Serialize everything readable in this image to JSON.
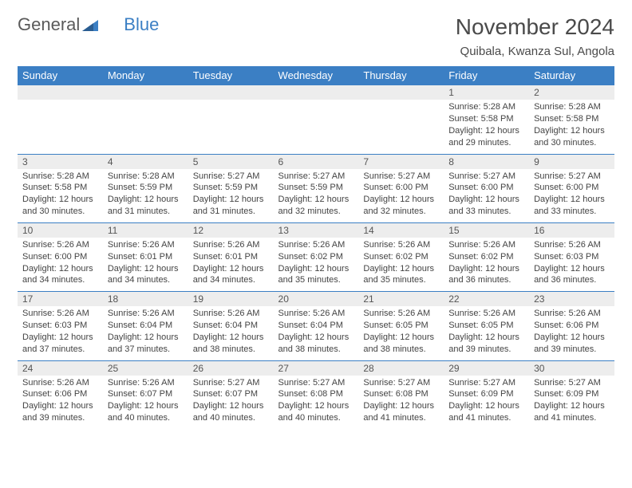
{
  "brand": {
    "part1": "General",
    "part2": "Blue"
  },
  "title": "November 2024",
  "location": "Quibala, Kwanza Sul, Angola",
  "colors": {
    "header_bg": "#3b7fc4",
    "header_text": "#ffffff",
    "daynum_bg": "#ededed",
    "rule": "#3b7fc4",
    "body_text": "#444444",
    "page_bg": "#ffffff"
  },
  "weekdays": [
    "Sunday",
    "Monday",
    "Tuesday",
    "Wednesday",
    "Thursday",
    "Friday",
    "Saturday"
  ],
  "weeks": [
    {
      "nums": [
        "",
        "",
        "",
        "",
        "",
        "1",
        "2"
      ],
      "cells": [
        {},
        {},
        {},
        {},
        {},
        {
          "sunrise": "Sunrise: 5:28 AM",
          "sunset": "Sunset: 5:58 PM",
          "day1": "Daylight: 12 hours",
          "day2": "and 29 minutes."
        },
        {
          "sunrise": "Sunrise: 5:28 AM",
          "sunset": "Sunset: 5:58 PM",
          "day1": "Daylight: 12 hours",
          "day2": "and 30 minutes."
        }
      ]
    },
    {
      "nums": [
        "3",
        "4",
        "5",
        "6",
        "7",
        "8",
        "9"
      ],
      "cells": [
        {
          "sunrise": "Sunrise: 5:28 AM",
          "sunset": "Sunset: 5:58 PM",
          "day1": "Daylight: 12 hours",
          "day2": "and 30 minutes."
        },
        {
          "sunrise": "Sunrise: 5:28 AM",
          "sunset": "Sunset: 5:59 PM",
          "day1": "Daylight: 12 hours",
          "day2": "and 31 minutes."
        },
        {
          "sunrise": "Sunrise: 5:27 AM",
          "sunset": "Sunset: 5:59 PM",
          "day1": "Daylight: 12 hours",
          "day2": "and 31 minutes."
        },
        {
          "sunrise": "Sunrise: 5:27 AM",
          "sunset": "Sunset: 5:59 PM",
          "day1": "Daylight: 12 hours",
          "day2": "and 32 minutes."
        },
        {
          "sunrise": "Sunrise: 5:27 AM",
          "sunset": "Sunset: 6:00 PM",
          "day1": "Daylight: 12 hours",
          "day2": "and 32 minutes."
        },
        {
          "sunrise": "Sunrise: 5:27 AM",
          "sunset": "Sunset: 6:00 PM",
          "day1": "Daylight: 12 hours",
          "day2": "and 33 minutes."
        },
        {
          "sunrise": "Sunrise: 5:27 AM",
          "sunset": "Sunset: 6:00 PM",
          "day1": "Daylight: 12 hours",
          "day2": "and 33 minutes."
        }
      ]
    },
    {
      "nums": [
        "10",
        "11",
        "12",
        "13",
        "14",
        "15",
        "16"
      ],
      "cells": [
        {
          "sunrise": "Sunrise: 5:26 AM",
          "sunset": "Sunset: 6:00 PM",
          "day1": "Daylight: 12 hours",
          "day2": "and 34 minutes."
        },
        {
          "sunrise": "Sunrise: 5:26 AM",
          "sunset": "Sunset: 6:01 PM",
          "day1": "Daylight: 12 hours",
          "day2": "and 34 minutes."
        },
        {
          "sunrise": "Sunrise: 5:26 AM",
          "sunset": "Sunset: 6:01 PM",
          "day1": "Daylight: 12 hours",
          "day2": "and 34 minutes."
        },
        {
          "sunrise": "Sunrise: 5:26 AM",
          "sunset": "Sunset: 6:02 PM",
          "day1": "Daylight: 12 hours",
          "day2": "and 35 minutes."
        },
        {
          "sunrise": "Sunrise: 5:26 AM",
          "sunset": "Sunset: 6:02 PM",
          "day1": "Daylight: 12 hours",
          "day2": "and 35 minutes."
        },
        {
          "sunrise": "Sunrise: 5:26 AM",
          "sunset": "Sunset: 6:02 PM",
          "day1": "Daylight: 12 hours",
          "day2": "and 36 minutes."
        },
        {
          "sunrise": "Sunrise: 5:26 AM",
          "sunset": "Sunset: 6:03 PM",
          "day1": "Daylight: 12 hours",
          "day2": "and 36 minutes."
        }
      ]
    },
    {
      "nums": [
        "17",
        "18",
        "19",
        "20",
        "21",
        "22",
        "23"
      ],
      "cells": [
        {
          "sunrise": "Sunrise: 5:26 AM",
          "sunset": "Sunset: 6:03 PM",
          "day1": "Daylight: 12 hours",
          "day2": "and 37 minutes."
        },
        {
          "sunrise": "Sunrise: 5:26 AM",
          "sunset": "Sunset: 6:04 PM",
          "day1": "Daylight: 12 hours",
          "day2": "and 37 minutes."
        },
        {
          "sunrise": "Sunrise: 5:26 AM",
          "sunset": "Sunset: 6:04 PM",
          "day1": "Daylight: 12 hours",
          "day2": "and 38 minutes."
        },
        {
          "sunrise": "Sunrise: 5:26 AM",
          "sunset": "Sunset: 6:04 PM",
          "day1": "Daylight: 12 hours",
          "day2": "and 38 minutes."
        },
        {
          "sunrise": "Sunrise: 5:26 AM",
          "sunset": "Sunset: 6:05 PM",
          "day1": "Daylight: 12 hours",
          "day2": "and 38 minutes."
        },
        {
          "sunrise": "Sunrise: 5:26 AM",
          "sunset": "Sunset: 6:05 PM",
          "day1": "Daylight: 12 hours",
          "day2": "and 39 minutes."
        },
        {
          "sunrise": "Sunrise: 5:26 AM",
          "sunset": "Sunset: 6:06 PM",
          "day1": "Daylight: 12 hours",
          "day2": "and 39 minutes."
        }
      ]
    },
    {
      "nums": [
        "24",
        "25",
        "26",
        "27",
        "28",
        "29",
        "30"
      ],
      "cells": [
        {
          "sunrise": "Sunrise: 5:26 AM",
          "sunset": "Sunset: 6:06 PM",
          "day1": "Daylight: 12 hours",
          "day2": "and 39 minutes."
        },
        {
          "sunrise": "Sunrise: 5:26 AM",
          "sunset": "Sunset: 6:07 PM",
          "day1": "Daylight: 12 hours",
          "day2": "and 40 minutes."
        },
        {
          "sunrise": "Sunrise: 5:27 AM",
          "sunset": "Sunset: 6:07 PM",
          "day1": "Daylight: 12 hours",
          "day2": "and 40 minutes."
        },
        {
          "sunrise": "Sunrise: 5:27 AM",
          "sunset": "Sunset: 6:08 PM",
          "day1": "Daylight: 12 hours",
          "day2": "and 40 minutes."
        },
        {
          "sunrise": "Sunrise: 5:27 AM",
          "sunset": "Sunset: 6:08 PM",
          "day1": "Daylight: 12 hours",
          "day2": "and 41 minutes."
        },
        {
          "sunrise": "Sunrise: 5:27 AM",
          "sunset": "Sunset: 6:09 PM",
          "day1": "Daylight: 12 hours",
          "day2": "and 41 minutes."
        },
        {
          "sunrise": "Sunrise: 5:27 AM",
          "sunset": "Sunset: 6:09 PM",
          "day1": "Daylight: 12 hours",
          "day2": "and 41 minutes."
        }
      ]
    }
  ]
}
